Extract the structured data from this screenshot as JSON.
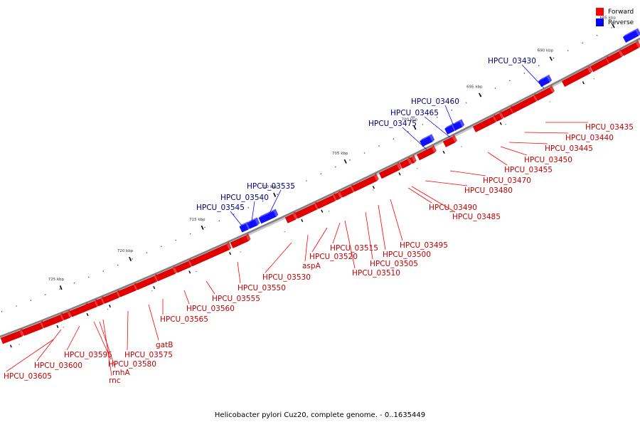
{
  "caption": "Helicobacter pylori Cuz20, complete genome. - 0..1635449",
  "legend": [
    {
      "label": "Forward",
      "color": "#ff0000"
    },
    {
      "label": "Reverse",
      "color": "#0000ff"
    }
  ],
  "colors": {
    "forward": "#e00000",
    "forward_top": "#ff5050",
    "forward_label": "#c00000",
    "reverse": "#1010ff",
    "reverse_top": "#6060ff",
    "reverse_label": "#00007a",
    "backbone": "#808080"
  },
  "scale_ticks": [
    {
      "label": "725 kbp",
      "kbp": 725
    },
    {
      "label": "720 kbp",
      "kbp": 720
    },
    {
      "label": "715 kbp",
      "kbp": 715
    },
    {
      "label": "710 kbp",
      "kbp": 710
    },
    {
      "label": "705 kbp",
      "kbp": 705
    },
    {
      "label": "700 kbp",
      "kbp": 700
    },
    {
      "label": "695 kbp",
      "kbp": 695
    },
    {
      "label": "690 kbp",
      "kbp": 690
    },
    {
      "label": "685 kbp",
      "kbp": 685
    }
  ],
  "forward_genes": [
    {
      "label": "HPCU_03605"
    },
    {
      "label": "HPCU_03600"
    },
    {
      "label": "HPCU_03595"
    },
    {
      "label": "HPCU_03580"
    },
    {
      "label": "rnhA"
    },
    {
      "label": "rnc"
    },
    {
      "label": "HPCU_03575"
    },
    {
      "label": "gatB"
    },
    {
      "label": "HPCU_03565"
    },
    {
      "label": "HPCU_03560"
    },
    {
      "label": "HPCU_03555"
    },
    {
      "label": "HPCU_03550"
    },
    {
      "label": "HPCU_03530"
    },
    {
      "label": "aspA"
    },
    {
      "label": "HPCU_03520"
    },
    {
      "label": "HPCU_03515"
    },
    {
      "label": "HPCU_03510"
    },
    {
      "label": "HPCU_03505"
    },
    {
      "label": "HPCU_03500"
    },
    {
      "label": "HPCU_03495"
    },
    {
      "label": "HPCU_03490"
    },
    {
      "label": "HPCU_03485"
    },
    {
      "label": "HPCU_03480"
    },
    {
      "label": "HPCU_03470"
    },
    {
      "label": "HPCU_03455"
    },
    {
      "label": "HPCU_03450"
    },
    {
      "label": "HPCU_03445"
    },
    {
      "label": "HPCU_03440"
    },
    {
      "label": "HPCU_03435"
    }
  ],
  "reverse_genes": [
    {
      "label": "HPCU_03545"
    },
    {
      "label": "HPCU_03540"
    },
    {
      "label": "HPCU_03535"
    },
    {
      "label": "HPCU_03475"
    },
    {
      "label": "HPCU_03465"
    },
    {
      "label": "HPCU_03460"
    },
    {
      "label": "HPCU_03430"
    }
  ]
}
